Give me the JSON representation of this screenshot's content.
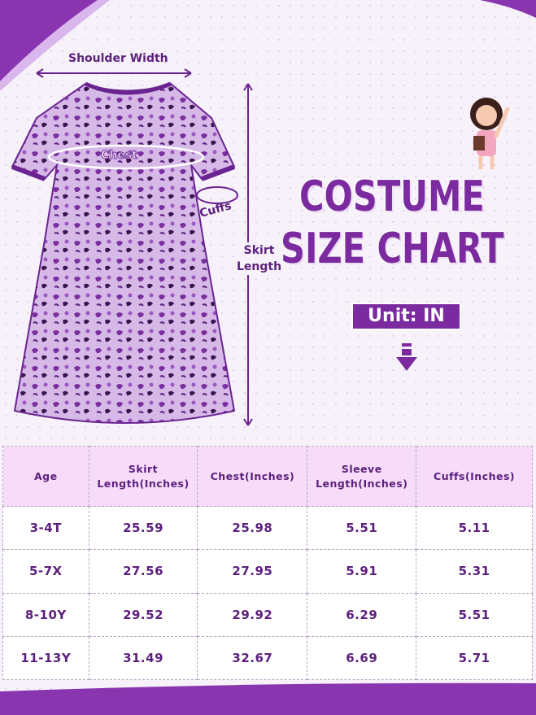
{
  "colors": {
    "brand": "#7b2a9f",
    "header_bg": "#f6dcf8",
    "text": "#5c1f7d"
  },
  "title": {
    "line1": "COSTUME",
    "line2": "SIZE CHART"
  },
  "unit": "Unit: IN",
  "labels": {
    "shoulder": "Shoulder Width",
    "chest": "Chest",
    "cuffs": "Cuffs",
    "skirt_line1": "Skirt",
    "skirt_line2": "Length"
  },
  "icons": [
    "down-arrow-icon",
    "girl-illustration",
    "dress-image"
  ],
  "table": {
    "headers": [
      [
        "Age",
        ""
      ],
      [
        "Skirt",
        "Length(Inches)"
      ],
      [
        "Chest(Inches)",
        ""
      ],
      [
        "Sleeve",
        "Length(Inches)"
      ],
      [
        "Cuffs(Inches)",
        ""
      ]
    ],
    "rows": [
      [
        "3-4T",
        "25.59",
        "25.98",
        "5.51",
        "5.11"
      ],
      [
        "5-7X",
        "27.56",
        "27.95",
        "5.91",
        "5.31"
      ],
      [
        "8-10Y",
        "29.52",
        "29.92",
        "6.29",
        "5.51"
      ],
      [
        "11-13Y",
        "31.49",
        "32.67",
        "6.69",
        "5.71"
      ]
    ]
  }
}
